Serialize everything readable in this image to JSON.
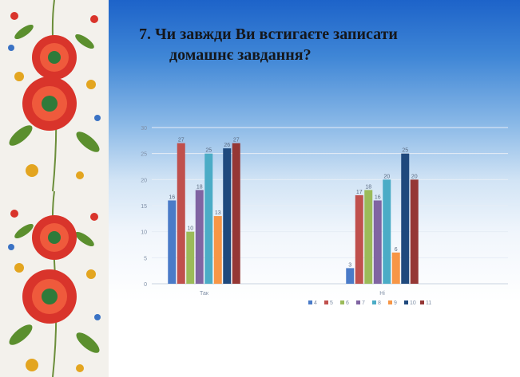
{
  "slide": {
    "title_line1": "7. Чи завжди Ви встигаєте записати",
    "title_line2": "домашнє завдання?"
  },
  "chart_data": {
    "type": "bar",
    "categories": [
      "Так",
      "Ні"
    ],
    "series": [
      {
        "name": "4",
        "color": "#4a7bc8",
        "values": [
          16,
          3
        ]
      },
      {
        "name": "5",
        "color": "#c0504d",
        "values": [
          27,
          17
        ]
      },
      {
        "name": "6",
        "color": "#9bbb59",
        "values": [
          10,
          18
        ]
      },
      {
        "name": "7",
        "color": "#8064a2",
        "values": [
          18,
          16
        ]
      },
      {
        "name": "8",
        "color": "#4bacc6",
        "values": [
          25,
          20
        ]
      },
      {
        "name": "9",
        "color": "#f79646",
        "values": [
          13,
          6
        ]
      },
      {
        "name": "10",
        "color": "#1f497d",
        "values": [
          26,
          25
        ]
      },
      {
        "name": "11",
        "color": "#953735",
        "values": [
          27,
          20
        ]
      }
    ],
    "ylim": [
      0,
      30
    ],
    "yticks": [
      0,
      5,
      10,
      15,
      20,
      25,
      30
    ],
    "grid": true,
    "legend_position": "bottom"
  }
}
